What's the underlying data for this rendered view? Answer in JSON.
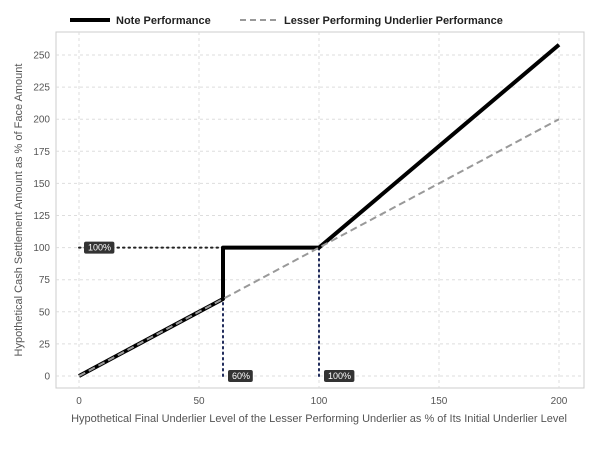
{
  "chart_data": {
    "type": "line",
    "xlabel": "Hypothetical Final Underlier Level of the Lesser Performing Underlier as % of Its Initial Underlier Level",
    "ylabel": "Hypothetical Cash Settlement Amount as % of Face Amount",
    "xlim": [
      0,
      200
    ],
    "ylim": [
      0,
      250
    ],
    "x_ticks": [
      0,
      50,
      100,
      150,
      200
    ],
    "y_ticks": [
      0,
      25,
      50,
      75,
      100,
      125,
      150,
      175,
      200,
      225,
      250
    ],
    "grid": true,
    "legend_position": "top",
    "series": [
      {
        "name": "Note Performance",
        "style": "solid",
        "color": "#000000",
        "x": [
          0,
          60,
          60,
          100,
          200
        ],
        "y": [
          0,
          60,
          100,
          100,
          258
        ]
      },
      {
        "name": "Lesser Performing Underlier Performance",
        "style": "dashed",
        "color": "#999999",
        "x": [
          0,
          200
        ],
        "y": [
          0,
          200
        ]
      }
    ],
    "reference_lines": [
      {
        "kind": "horizontal",
        "y": 100,
        "x_from": 0,
        "x_to": 100,
        "color": "#222222"
      },
      {
        "kind": "vertical",
        "x": 60,
        "y_from": 0,
        "y_to": 100,
        "color": "#1f2a5a"
      },
      {
        "kind": "vertical",
        "x": 100,
        "y_from": 0,
        "y_to": 100,
        "color": "#1f2a5a"
      }
    ],
    "annotations": [
      {
        "text": "100%",
        "x": 0,
        "y": 100
      },
      {
        "text": "60%",
        "x": 60,
        "y": 0
      },
      {
        "text": "100%",
        "x": 100,
        "y": 0
      }
    ]
  }
}
